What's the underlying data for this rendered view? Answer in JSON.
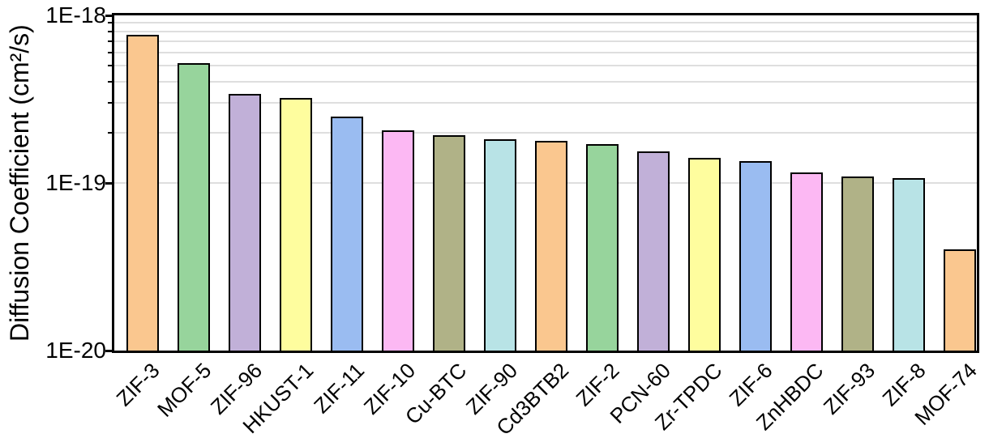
{
  "chart_data": {
    "type": "bar",
    "title": "",
    "ylabel": "Diffusion Coefficient (cm²/s)",
    "xlabel": "",
    "y_scale": "log",
    "ylim": [
      1e-20,
      1e-18
    ],
    "y_ticks": [
      {
        "label": "1E-18",
        "value": 1e-18
      },
      {
        "label": "1E-19",
        "value": 1e-19
      },
      {
        "label": "1E-20",
        "value": 1e-20
      }
    ],
    "grid": "horizontal log minor gridlines (2-9 per decade), light gray",
    "legend": "none",
    "categories": [
      "ZIF-3",
      "MOF-5",
      "ZIF-96",
      "HKUST-1",
      "ZIF-11",
      "ZIF-10",
      "Cu-BTC",
      "ZIF-90",
      "Cd3BTB2",
      "ZIF-2",
      "PCN-60",
      "Zr-TPDC",
      "ZIF-6",
      "ZnHBDC",
      "ZIF-93",
      "ZIF-8",
      "MOF-74"
    ],
    "values": [
      7.7e-19,
      5.2e-19,
      3.4e-19,
      3.2e-19,
      2.5e-19,
      2.05e-19,
      1.93e-19,
      1.82e-19,
      1.78e-19,
      1.71e-19,
      1.55e-19,
      1.41e-19,
      1.35e-19,
      1.16e-19,
      1.09e-19,
      1.07e-19,
      4e-20
    ],
    "bar_colors": [
      "#FAC78F",
      "#97D49C",
      "#C1B0D8",
      "#FEFD9E",
      "#9ABCF1",
      "#FCB8F3",
      "#B0B287",
      "#B8E3E6",
      "#FAC78F",
      "#97D49C",
      "#C1B0D8",
      "#FEFD9E",
      "#9ABCF1",
      "#FCB8F3",
      "#B0B287",
      "#B8E3E6",
      "#FAC78F"
    ],
    "bar_border_color": "#000000",
    "gridline_color": "#DEDEDE",
    "axis_color": "#000000",
    "background": "#FFFFFF"
  }
}
